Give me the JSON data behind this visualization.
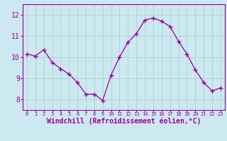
{
  "x": [
    0,
    1,
    2,
    3,
    4,
    5,
    6,
    7,
    8,
    9,
    10,
    11,
    12,
    13,
    14,
    15,
    16,
    17,
    18,
    19,
    20,
    21,
    22,
    23
  ],
  "y": [
    10.15,
    10.05,
    10.35,
    9.75,
    9.45,
    9.2,
    8.8,
    8.25,
    8.25,
    7.95,
    9.15,
    10.0,
    10.7,
    11.1,
    11.75,
    11.85,
    11.7,
    11.45,
    10.75,
    10.15,
    9.4,
    8.8,
    8.4,
    8.55
  ],
  "line_color": "#990099",
  "marker": "+",
  "marker_size": 4,
  "bg_color": "#cce8f0",
  "grid_color": "#aacccc",
  "xlabel": "Windchill (Refroidissement éolien,°C)",
  "xlabel_color": "#990099",
  "tick_color": "#990099",
  "ylim": [
    7.5,
    12.5
  ],
  "xlim": [
    -0.5,
    23.5
  ],
  "yticks": [
    8,
    9,
    10,
    11,
    12
  ],
  "xticks": [
    0,
    1,
    2,
    3,
    4,
    5,
    6,
    7,
    8,
    9,
    10,
    11,
    12,
    13,
    14,
    15,
    16,
    17,
    18,
    19,
    20,
    21,
    22,
    23
  ],
  "spine_color": "#990099",
  "fig_bg": "#cce8f0",
  "title_fontsize": 7,
  "xlabel_fontsize": 7,
  "xtick_fontsize": 5,
  "ytick_fontsize": 7
}
